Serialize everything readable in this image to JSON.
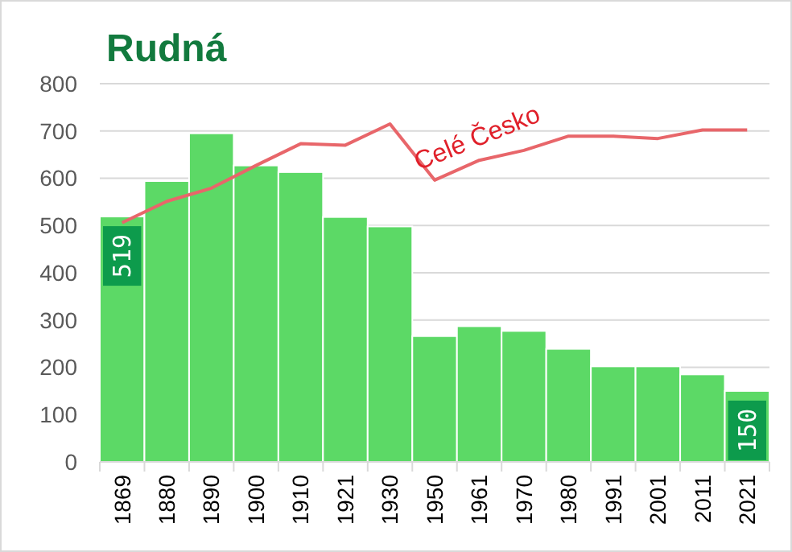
{
  "chart_data": {
    "type": "bar",
    "title": "Rudná",
    "categories": [
      "1869",
      "1880",
      "1890",
      "1900",
      "1910",
      "1921",
      "1930",
      "1950",
      "1961",
      "1970",
      "1980",
      "1991",
      "2001",
      "2011",
      "2021"
    ],
    "series": [
      {
        "color": "#5cd966",
        "values": [
          519,
          594,
          695,
          627,
          613,
          518,
          498,
          266,
          287,
          277,
          239,
          202,
          202,
          185,
          150
        ],
        "value_labels": [
          "519",
          null,
          null,
          null,
          null,
          null,
          null,
          null,
          null,
          null,
          null,
          null,
          null,
          null,
          "150"
        ]
      },
      {
        "type": "line",
        "name": "Celé Česko",
        "color": "#e8666a",
        "values": [
          506,
          551,
          579,
          627,
          673,
          670,
          715,
          596,
          638,
          659,
          689,
          689,
          684,
          702,
          702
        ]
      }
    ],
    "ylim": [
      0,
      800
    ],
    "yticks": [
      0,
      100,
      200,
      300,
      400,
      500,
      600,
      700,
      800
    ],
    "grid": "y"
  }
}
